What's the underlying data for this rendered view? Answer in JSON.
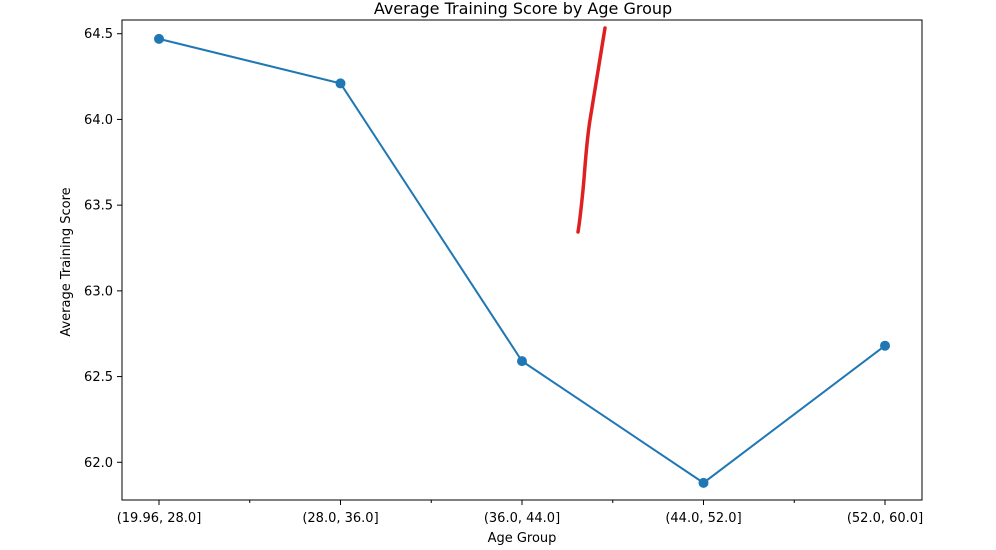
{
  "chart_data": {
    "type": "line",
    "title": "Average Training Score by Age Group",
    "xlabel": "Age Group",
    "ylabel": "Average Training Score",
    "categories": [
      "(19.96, 28.0]",
      "(28.0, 36.0]",
      "(36.0, 44.0]",
      "(44.0, 52.0]",
      "(52.0, 60.0]"
    ],
    "series": [
      {
        "values": [
          64.47,
          64.21,
          62.59,
          61.88,
          62.68
        ],
        "color": "#1f77b4",
        "marker": "circle"
      }
    ],
    "ylim": [
      61.78,
      64.58
    ],
    "yticks": [
      "62.0",
      "62.5",
      "63.0",
      "63.5",
      "64.0",
      "64.5"
    ],
    "grid": false,
    "legend": "none",
    "annotation": {
      "kind": "hand-drawn stroke",
      "color": "#e02020"
    }
  }
}
